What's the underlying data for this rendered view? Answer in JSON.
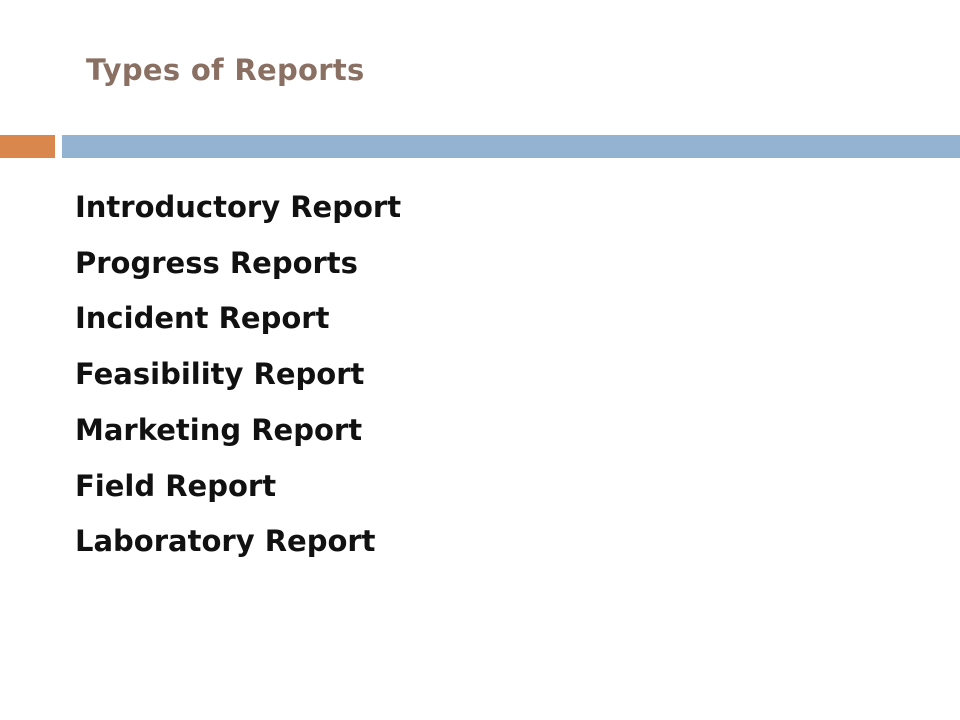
{
  "slide": {
    "title": "Types of Reports",
    "items": [
      "Introductory Report",
      "Progress Reports",
      "Incident Report",
      "Feasibility Report",
      "Marketing Report",
      "Field Report",
      "Laboratory Report"
    ]
  },
  "colors": {
    "title": "#8a6f63",
    "accent_orange": "#d9874c",
    "accent_blue": "#94b3d3",
    "text": "#111111"
  }
}
